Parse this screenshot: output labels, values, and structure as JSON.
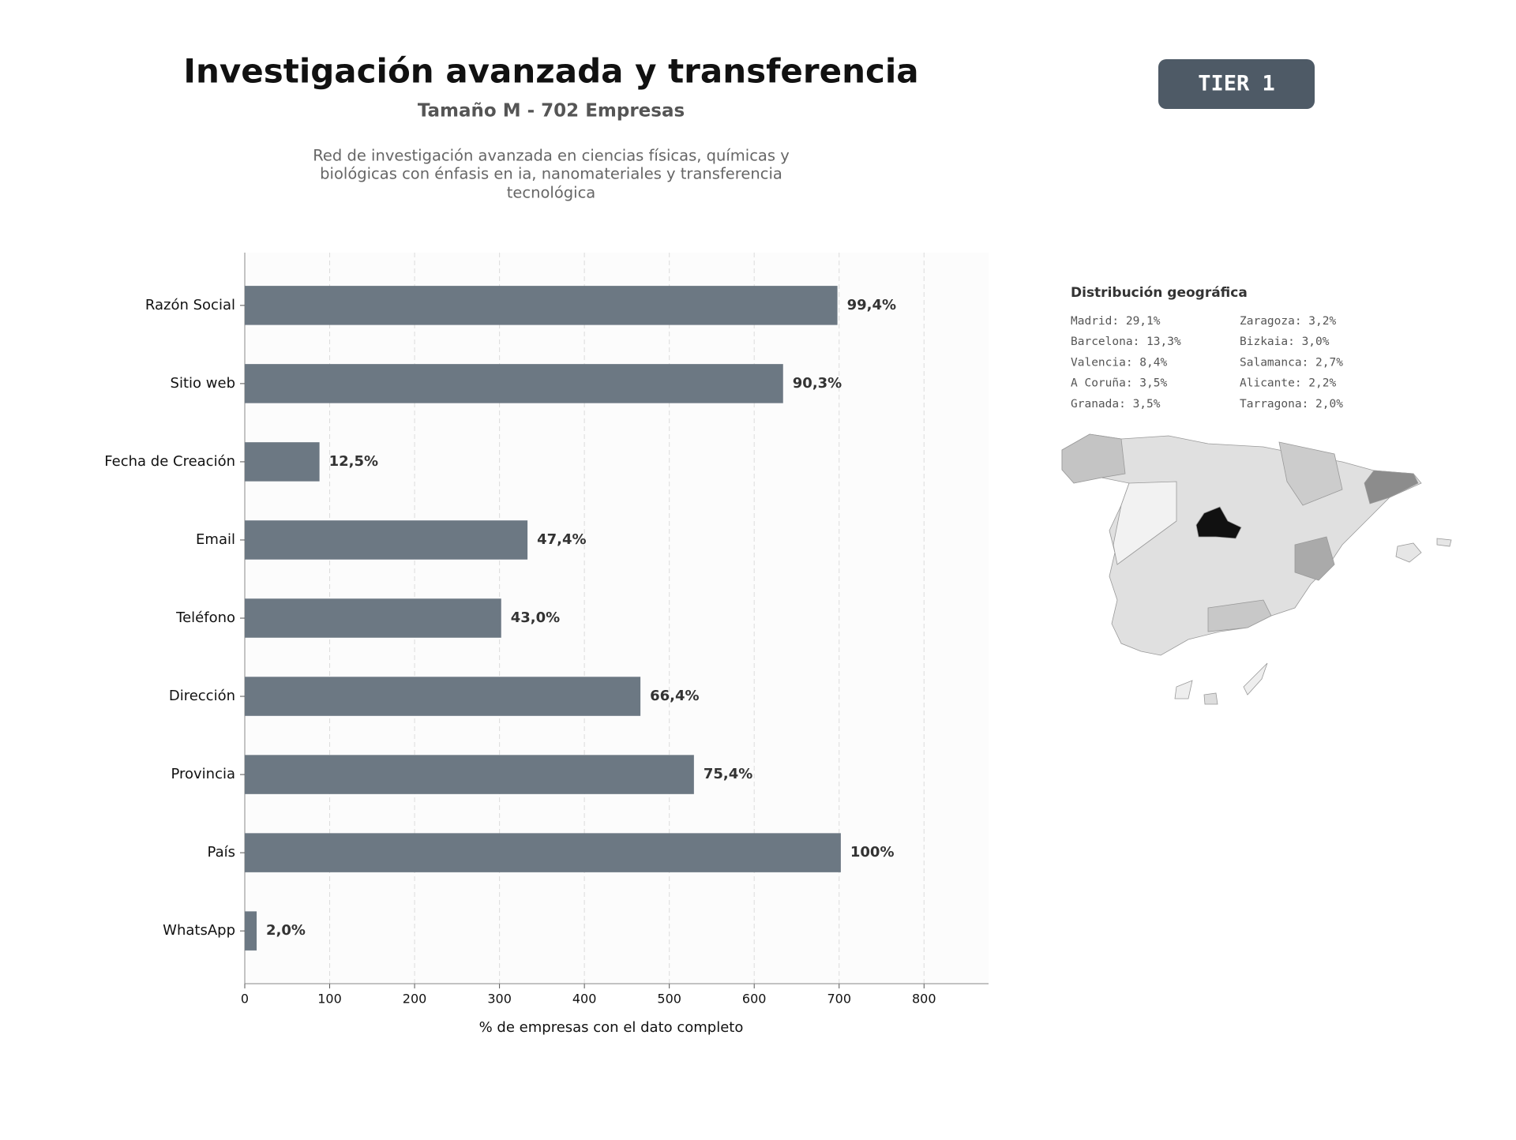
{
  "header": {
    "title": "Investigación avanzada y transferencia",
    "subtitle": "Tamaño M - 702 Empresas",
    "description": [
      "Red de investigación avanzada en ciencias físicas, químicas y",
      "biológicas con énfasis en ia, nanomateriales y transferencia",
      "tecnológica"
    ],
    "badge": "TIER 1"
  },
  "chart_data": {
    "type": "bar",
    "orientation": "horizontal",
    "xlabel": "% de empresas con el dato completo",
    "categories": [
      "Razón Social",
      "Sitio web",
      "Fecha de Creación",
      "Email",
      "Teléfono",
      "Dirección",
      "Provincia",
      "País",
      "WhatsApp"
    ],
    "values": [
      698,
      634,
      88,
      333,
      302,
      466,
      529,
      702,
      14
    ],
    "value_labels": [
      "99,4%",
      "90,3%",
      "12,5%",
      "47,4%",
      "43,0%",
      "66,4%",
      "75,4%",
      "100%",
      "2,0%"
    ],
    "color": "#6c7883",
    "xlim": [
      0,
      876
    ],
    "xticks": [
      0,
      100,
      200,
      300,
      400,
      500,
      600,
      700,
      800
    ],
    "grid": true
  },
  "map": {
    "title": "Distribución geográfica",
    "entries": [
      [
        "Madrid: 29,1%",
        "Zaragoza: 3,2%"
      ],
      [
        "Barcelona: 13,3%",
        "Bizkaia: 3,0%"
      ],
      [
        "Valencia: 8,4%",
        "Salamanca: 2,7%"
      ],
      [
        "A Coruña: 3,5%",
        "Alicante: 2,2%"
      ],
      [
        "Granada: 3,5%",
        "Tarragona: 2,0%"
      ]
    ]
  }
}
